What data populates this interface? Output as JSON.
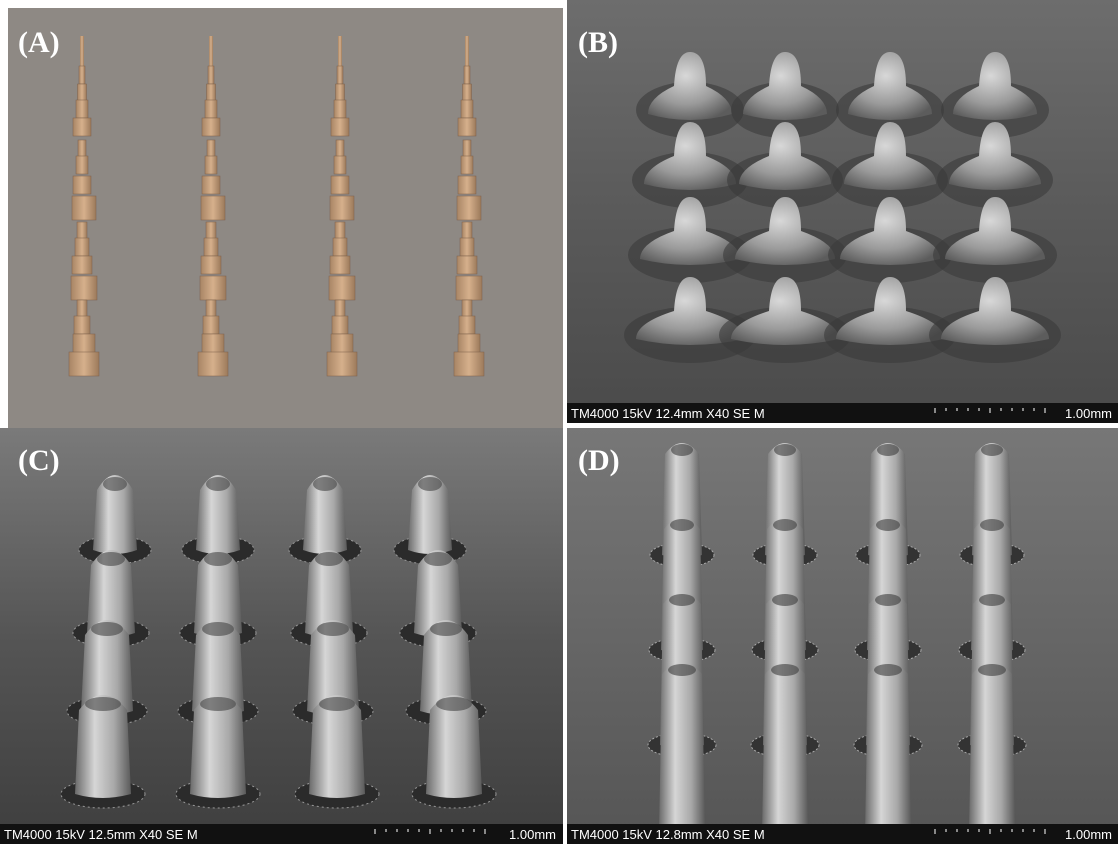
{
  "panels": [
    {
      "label": "(A)"
    },
    {
      "label": "(B)",
      "info": "TM4000 15kV 12.4mm X40 SE M",
      "scale": "1.00mm"
    },
    {
      "label": "(C)",
      "info": "TM4000 15kV 12.5mm X40 SE M",
      "scale": "1.00mm"
    },
    {
      "label": "(D)",
      "info": "TM4000 15kV 12.8mm X40 SE M",
      "scale": "1.00mm"
    }
  ]
}
